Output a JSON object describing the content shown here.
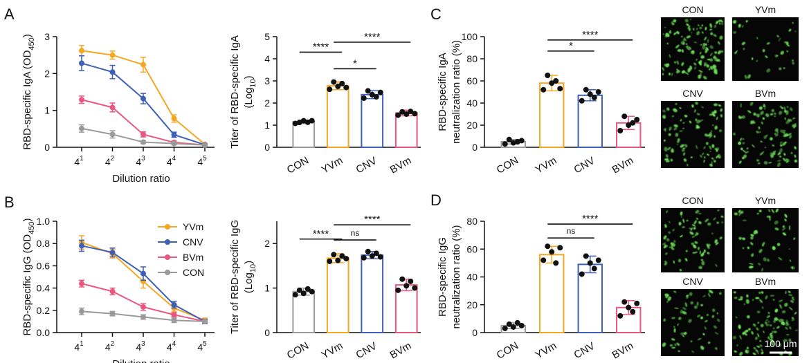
{
  "colors": {
    "YVm": "#f5a623",
    "CNV": "#3d5fb5",
    "BVm": "#e9567e",
    "CON": "#9a9a9a",
    "cell": "#6fe05a",
    "bg": "#050605"
  },
  "panels": {
    "A": "A",
    "B": "B",
    "C": "C",
    "D": "D"
  },
  "chart_data": [
    {
      "id": "A1",
      "type": "line",
      "ylabel": "RBD-specific IgA (OD",
      "ylabel_sub": "450",
      "ylabel_end": ")",
      "xlabel": "Dilution ratio",
      "x": [
        "4^1",
        "4^2",
        "4^3",
        "4^4",
        "4^5"
      ],
      "x_base": "4",
      "x_exp": [
        "1",
        "2",
        "3",
        "4",
        "5"
      ],
      "ylim": [
        0,
        3
      ],
      "yticks": [
        "0",
        "1",
        "2",
        "3"
      ],
      "ytick_values": [
        0,
        1,
        2,
        3
      ],
      "series": [
        {
          "name": "YVm",
          "values": [
            2.62,
            2.5,
            2.24,
            0.78,
            0.08
          ],
          "err": [
            0.14,
            0.11,
            0.2,
            0.1,
            0.02
          ]
        },
        {
          "name": "CNV",
          "values": [
            2.28,
            2.04,
            1.32,
            0.34,
            0.07
          ],
          "err": [
            0.2,
            0.18,
            0.14,
            0.07,
            0.02
          ]
        },
        {
          "name": "BVm",
          "values": [
            1.29,
            1.08,
            0.35,
            0.13,
            0.06
          ],
          "err": [
            0.1,
            0.12,
            0.07,
            0.04,
            0.02
          ]
        },
        {
          "name": "CON",
          "values": [
            0.51,
            0.35,
            0.14,
            0.1,
            0.06
          ],
          "err": [
            0.1,
            0.1,
            0.04,
            0.03,
            0.02
          ]
        }
      ]
    },
    {
      "id": "A2",
      "type": "bar",
      "ylabel": "Titer of RBD-specific IgA",
      "ylabel2": "(Log",
      "ylabel2_sub": "10",
      "ylabel2_end": ")",
      "categories": [
        "CON",
        "YVm",
        "CNV",
        "BVm"
      ],
      "values": [
        1.15,
        2.78,
        2.38,
        1.55
      ],
      "err": [
        0.08,
        0.18,
        0.18,
        0.13
      ],
      "points": [
        [
          1.08,
          1.12,
          1.2,
          1.13,
          1.2
        ],
        [
          2.62,
          2.95,
          2.75,
          2.88,
          2.7
        ],
        [
          2.22,
          2.55,
          2.38,
          2.28,
          2.48
        ],
        [
          1.45,
          1.6,
          1.5,
          1.62,
          1.52
        ]
      ],
      "ylim": [
        0,
        5
      ],
      "yticks": [
        "0",
        "1",
        "2",
        "3",
        "4",
        "5"
      ],
      "ytick_values": [
        0,
        1,
        2,
        3,
        4,
        5
      ],
      "comparisons": [
        {
          "from": 0,
          "to": 1,
          "label": "****",
          "level": 4.3
        },
        {
          "from": 1,
          "to": 2,
          "label": "*",
          "level": 3.55
        },
        {
          "from": 1,
          "to": 3,
          "label": "****",
          "level": 4.75
        }
      ]
    },
    {
      "id": "B1",
      "type": "line",
      "ylabel": "RBD-specific IgG (OD",
      "ylabel_sub": "450",
      "ylabel_end": ")",
      "xlabel": "Dilution ratio",
      "x": [
        "4^1",
        "4^2",
        "4^3",
        "4^4",
        "4^5"
      ],
      "x_base": "4",
      "x_exp": [
        "1",
        "2",
        "3",
        "4",
        "5"
      ],
      "ylim": [
        0,
        1.0
      ],
      "yticks": [
        "0.0",
        "0.2",
        "0.4",
        "0.6",
        "0.8",
        "1.0"
      ],
      "ytick_values": [
        0,
        0.2,
        0.4,
        0.6,
        0.8,
        1.0
      ],
      "legend": [
        "YVm",
        "CNV",
        "BVm",
        "CON"
      ],
      "series": [
        {
          "name": "YVm",
          "values": [
            0.81,
            0.71,
            0.46,
            0.22,
            0.11
          ],
          "err": [
            0.06,
            0.04,
            0.06,
            0.03,
            0.02
          ]
        },
        {
          "name": "CNV",
          "values": [
            0.78,
            0.72,
            0.53,
            0.25,
            0.1
          ],
          "err": [
            0.05,
            0.04,
            0.06,
            0.03,
            0.02
          ]
        },
        {
          "name": "BVm",
          "values": [
            0.44,
            0.37,
            0.23,
            0.16,
            0.1
          ],
          "err": [
            0.03,
            0.03,
            0.03,
            0.02,
            0.01
          ]
        },
        {
          "name": "CON",
          "values": [
            0.19,
            0.17,
            0.14,
            0.11,
            0.1
          ],
          "err": [
            0.03,
            0.02,
            0.02,
            0.02,
            0.01
          ]
        }
      ]
    },
    {
      "id": "B2",
      "type": "bar",
      "ylabel": "Titer of RBD-specific IgG",
      "ylabel2": "(Log",
      "ylabel2_sub": "10",
      "ylabel2_end": ")",
      "categories": [
        "CON",
        "YVm",
        "CNV",
        "BVm"
      ],
      "values": [
        0.92,
        1.67,
        1.74,
        1.07
      ],
      "err": [
        0.08,
        0.1,
        0.08,
        0.13
      ],
      "points": [
        [
          0.85,
          0.95,
          0.88,
          0.98,
          0.92
        ],
        [
          1.6,
          1.75,
          1.62,
          1.72,
          1.66
        ],
        [
          1.68,
          1.82,
          1.72,
          1.78,
          1.7
        ],
        [
          0.95,
          1.2,
          1.05,
          1.15,
          1.0
        ]
      ],
      "ylim": [
        0,
        2.5
      ],
      "yticks": [
        "0",
        "1",
        "2"
      ],
      "ytick_values": [
        0,
        1,
        2
      ],
      "comparisons": [
        {
          "from": 0,
          "to": 1,
          "label": "****",
          "level": 2.1
        },
        {
          "from": 1,
          "to": 2,
          "label": "ns",
          "level": 2.08
        },
        {
          "from": 1,
          "to": 3,
          "label": "****",
          "level": 2.42
        }
      ]
    },
    {
      "id": "C",
      "type": "bar",
      "ylabel": "RBD-specific IgA",
      "ylabel2": "neutralization ratio (%)",
      "categories": [
        "CON",
        "YVm",
        "CNV",
        "BVm"
      ],
      "values": [
        5,
        58,
        47,
        22
      ],
      "err": [
        2,
        7,
        5,
        6
      ],
      "points": [
        [
          3,
          7,
          4,
          5,
          6
        ],
        [
          52,
          65,
          58,
          60,
          53
        ],
        [
          42,
          52,
          48,
          45,
          50
        ],
        [
          15,
          28,
          20,
          22,
          25
        ]
      ],
      "ylim": [
        0,
        100
      ],
      "yticks": [
        "0",
        "20",
        "40",
        "60",
        "80",
        "100"
      ],
      "ytick_values": [
        0,
        20,
        40,
        60,
        80,
        100
      ],
      "comparisons": [
        {
          "from": 1,
          "to": 2,
          "label": "*",
          "level": 87
        },
        {
          "from": 1,
          "to": 3,
          "label": "****",
          "level": 97
        }
      ]
    },
    {
      "id": "D",
      "type": "bar",
      "ylabel": "RBD-specific IgG",
      "ylabel2": "neutralization ratio (%)",
      "categories": [
        "CON",
        "YVm",
        "CNV",
        "BVm"
      ],
      "values": [
        5,
        56,
        49,
        18
      ],
      "err": [
        2,
        6,
        6,
        5
      ],
      "points": [
        [
          3,
          6,
          4,
          7,
          5
        ],
        [
          52,
          62,
          58,
          50,
          61
        ],
        [
          42,
          55,
          50,
          46,
          52
        ],
        [
          12,
          22,
          18,
          15,
          21
        ]
      ],
      "ylim": [
        0,
        80
      ],
      "yticks": [
        "0",
        "20",
        "40",
        "60",
        "80"
      ],
      "ytick_values": [
        0,
        20,
        40,
        60,
        80
      ],
      "comparisons": [
        {
          "from": 1,
          "to": 2,
          "label": "ns",
          "level": 68
        },
        {
          "from": 1,
          "to": 3,
          "label": "****",
          "level": 78
        }
      ]
    }
  ],
  "micrographs": {
    "C": [
      "CON",
      "YVm",
      "CNV",
      "BVm"
    ],
    "D": [
      "CON",
      "YVm",
      "CNV",
      "BVm"
    ],
    "scalebar": "100 μm"
  }
}
